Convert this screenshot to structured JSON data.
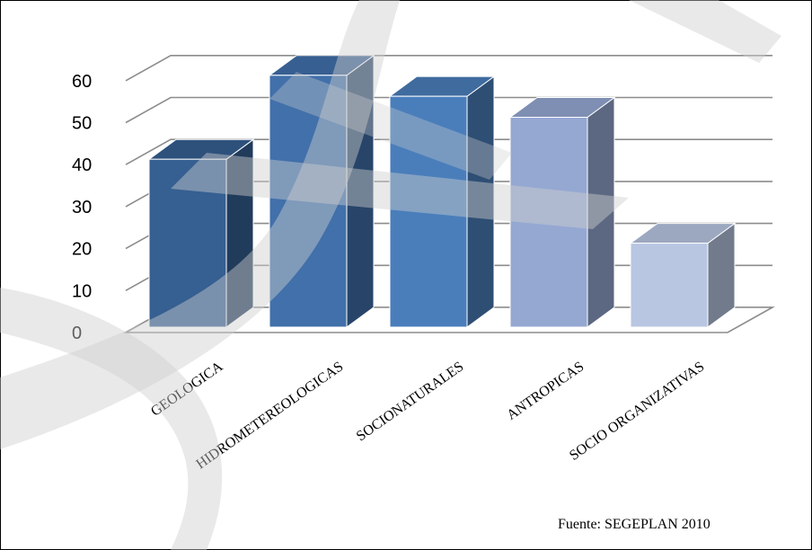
{
  "chart_data": {
    "type": "bar",
    "categories": [
      "GEOLOGICA",
      "HIDROMETEREOLOGICAS",
      "SOCIONATURALES",
      "ANTROPICAS",
      "SOCIO ORGANIZATIVAS"
    ],
    "values": [
      40,
      60,
      55,
      50,
      20
    ],
    "title": "",
    "xlabel": "",
    "ylabel": "",
    "ylim": [
      0,
      60
    ],
    "yticks": [
      0,
      10,
      20,
      30,
      40,
      50,
      60
    ],
    "grid": true,
    "style": "3d-column",
    "colors": [
      "#365f92",
      "#4170aa",
      "#4a7ebb",
      "#95a8d2",
      "#b8c6e2"
    ]
  },
  "source_note": "Fuente: SEGEPLAN 2010"
}
